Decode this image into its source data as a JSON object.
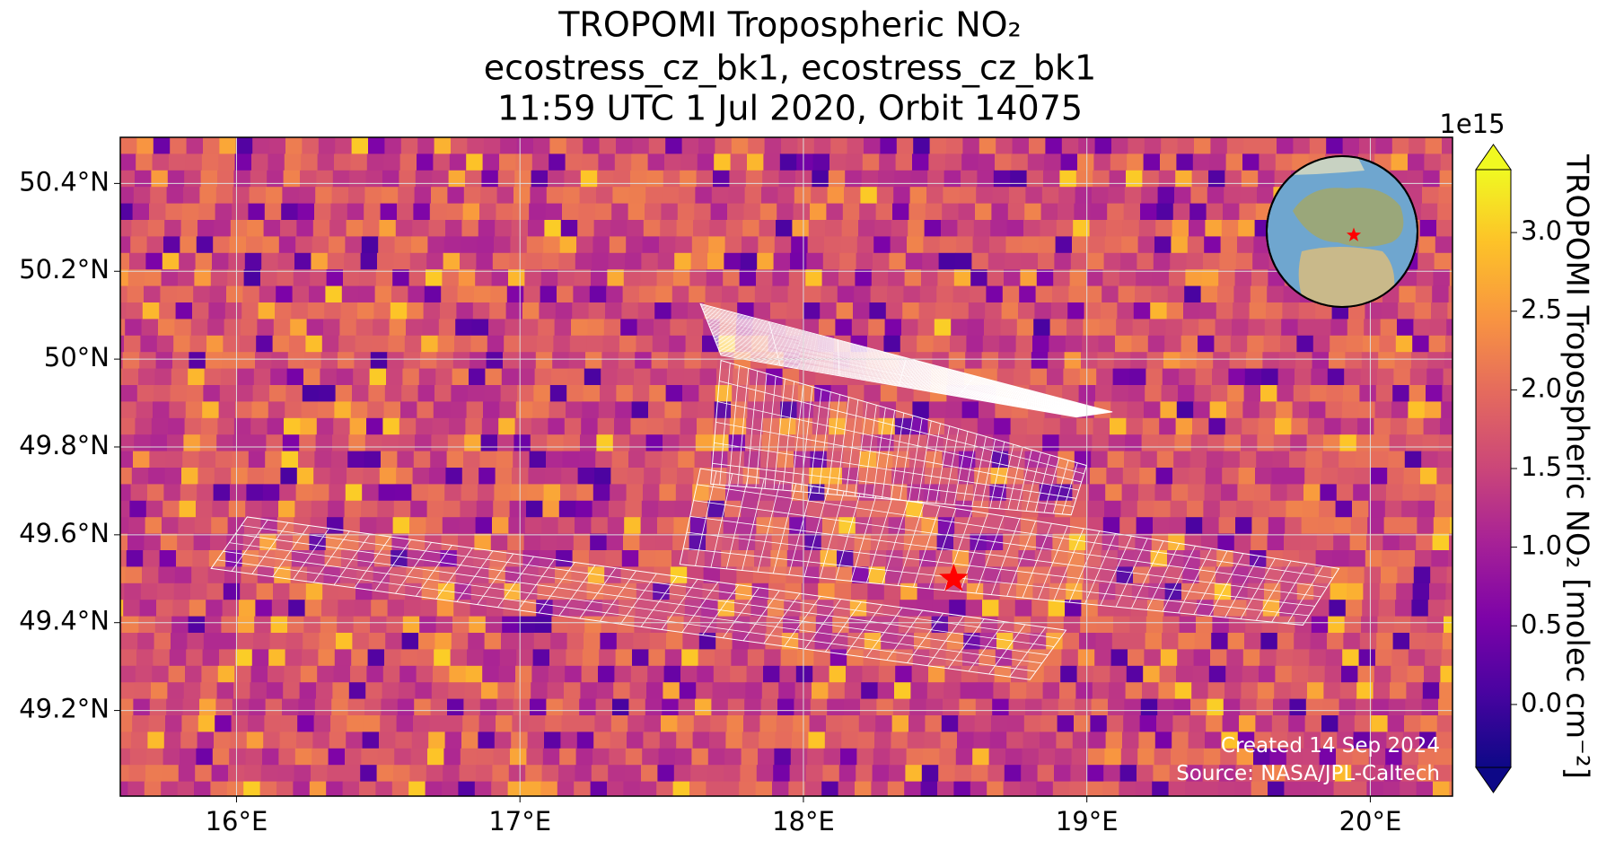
{
  "chart_data": {
    "type": "map",
    "title": [
      "TROPOMI Tropospheric NO₂",
      "ecostress_cz_bk1, ecostress_cz_bk1",
      "11:59 UTC 1 Jul 2020, Orbit 14075"
    ],
    "xlim": [
      15.59,
      20.29
    ],
    "ylim": [
      49.005,
      50.505
    ],
    "xticks": [
      {
        "value": 16,
        "label": "16°E"
      },
      {
        "value": 17,
        "label": "17°E"
      },
      {
        "value": 18,
        "label": "18°E"
      },
      {
        "value": 19,
        "label": "19°E"
      },
      {
        "value": 20,
        "label": "20°E"
      }
    ],
    "yticks": [
      {
        "value": 49.2,
        "label": "49.2°N"
      },
      {
        "value": 49.4,
        "label": "49.4°N"
      },
      {
        "value": 49.6,
        "label": "49.6°N"
      },
      {
        "value": 49.8,
        "label": "49.8°N"
      },
      {
        "value": 50,
        "label": "50°N"
      },
      {
        "value": 50.2,
        "label": "50.2°N"
      },
      {
        "value": 50.4,
        "label": "50.4°N"
      }
    ],
    "grid": true,
    "colorbar": {
      "label": "TROPOMI Tropospheric NO₂ [molec cm⁻²]",
      "multiplier": "1e15",
      "clim": [
        -0.4,
        3.4
      ],
      "ticks": [
        {
          "value": 0,
          "label": "0.0"
        },
        0.5,
        {
          "value": 1,
          "label": "1.0"
        },
        1.5,
        {
          "value": 2,
          "label": "2.0"
        },
        2.5,
        {
          "value": 3,
          "label": "3.0"
        }
      ],
      "colormap": "plasma"
    },
    "marker": {
      "lon": 18.53,
      "lat": 49.5,
      "color": "#ff0000"
    },
    "annotations": [
      "Created 14 Sep 2024",
      "Source: NASA/JPL-Caltech"
    ]
  }
}
